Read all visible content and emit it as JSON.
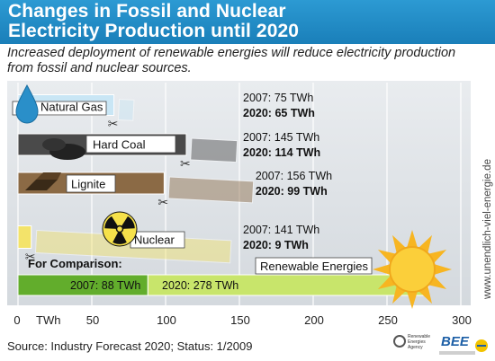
{
  "header": {
    "title_line1": "Changes in Fossil and Nuclear",
    "title_line2": "Electricity Production until 2020"
  },
  "subtitle": "Increased deployment of renewable energies will reduce electricity production from fossil and nuclear sources.",
  "chart_data": {
    "type": "bar",
    "unit": "TWh",
    "xlim": [
      0,
      300
    ],
    "x_ticks": [
      "0",
      "50",
      "100",
      "150",
      "200",
      "250",
      "300"
    ],
    "x_unit_label": "TWh",
    "grid": true,
    "series": [
      {
        "name": "Natural Gas",
        "value_2007": 75,
        "value_2020": 65,
        "label_2007": "2007: 75 TWh",
        "label_2020": "2020: 65  TWh",
        "color": "#c9e6f5"
      },
      {
        "name": "Hard Coal",
        "value_2007": 145,
        "value_2020": 114,
        "label_2007": "2007: 145 TWh",
        "label_2020": "2020: 114 TWh",
        "color": "#4a4a4a"
      },
      {
        "name": "Lignite",
        "value_2007": 156,
        "value_2020": 99,
        "label_2007": "2007: 156 TWh",
        "label_2020": "2020: 99 TWh",
        "color": "#8b6a45"
      },
      {
        "name": "Nuclear",
        "value_2007": 141,
        "value_2020": 9,
        "label_2007": "2007: 141 TWh",
        "label_2020": "2020: 9 TWh",
        "color": "#f3e36a"
      }
    ],
    "comparison": {
      "heading": "For Comparison:",
      "name": "Renewable Energies",
      "value_2007": 88,
      "value_2020": 278,
      "label_2007": "2007: 88 TWh",
      "label_2020": "2020: 278 TWh",
      "color_2007": "#62ad2c",
      "color_2020": "#c8e56b"
    }
  },
  "side_url": "www.unendlich-viel-energie.de",
  "source": "Source: Industry Forecast 2020; Status: 1/2009",
  "logos": {
    "agency": "Renewable Energies Agency",
    "bee": "BEE"
  }
}
